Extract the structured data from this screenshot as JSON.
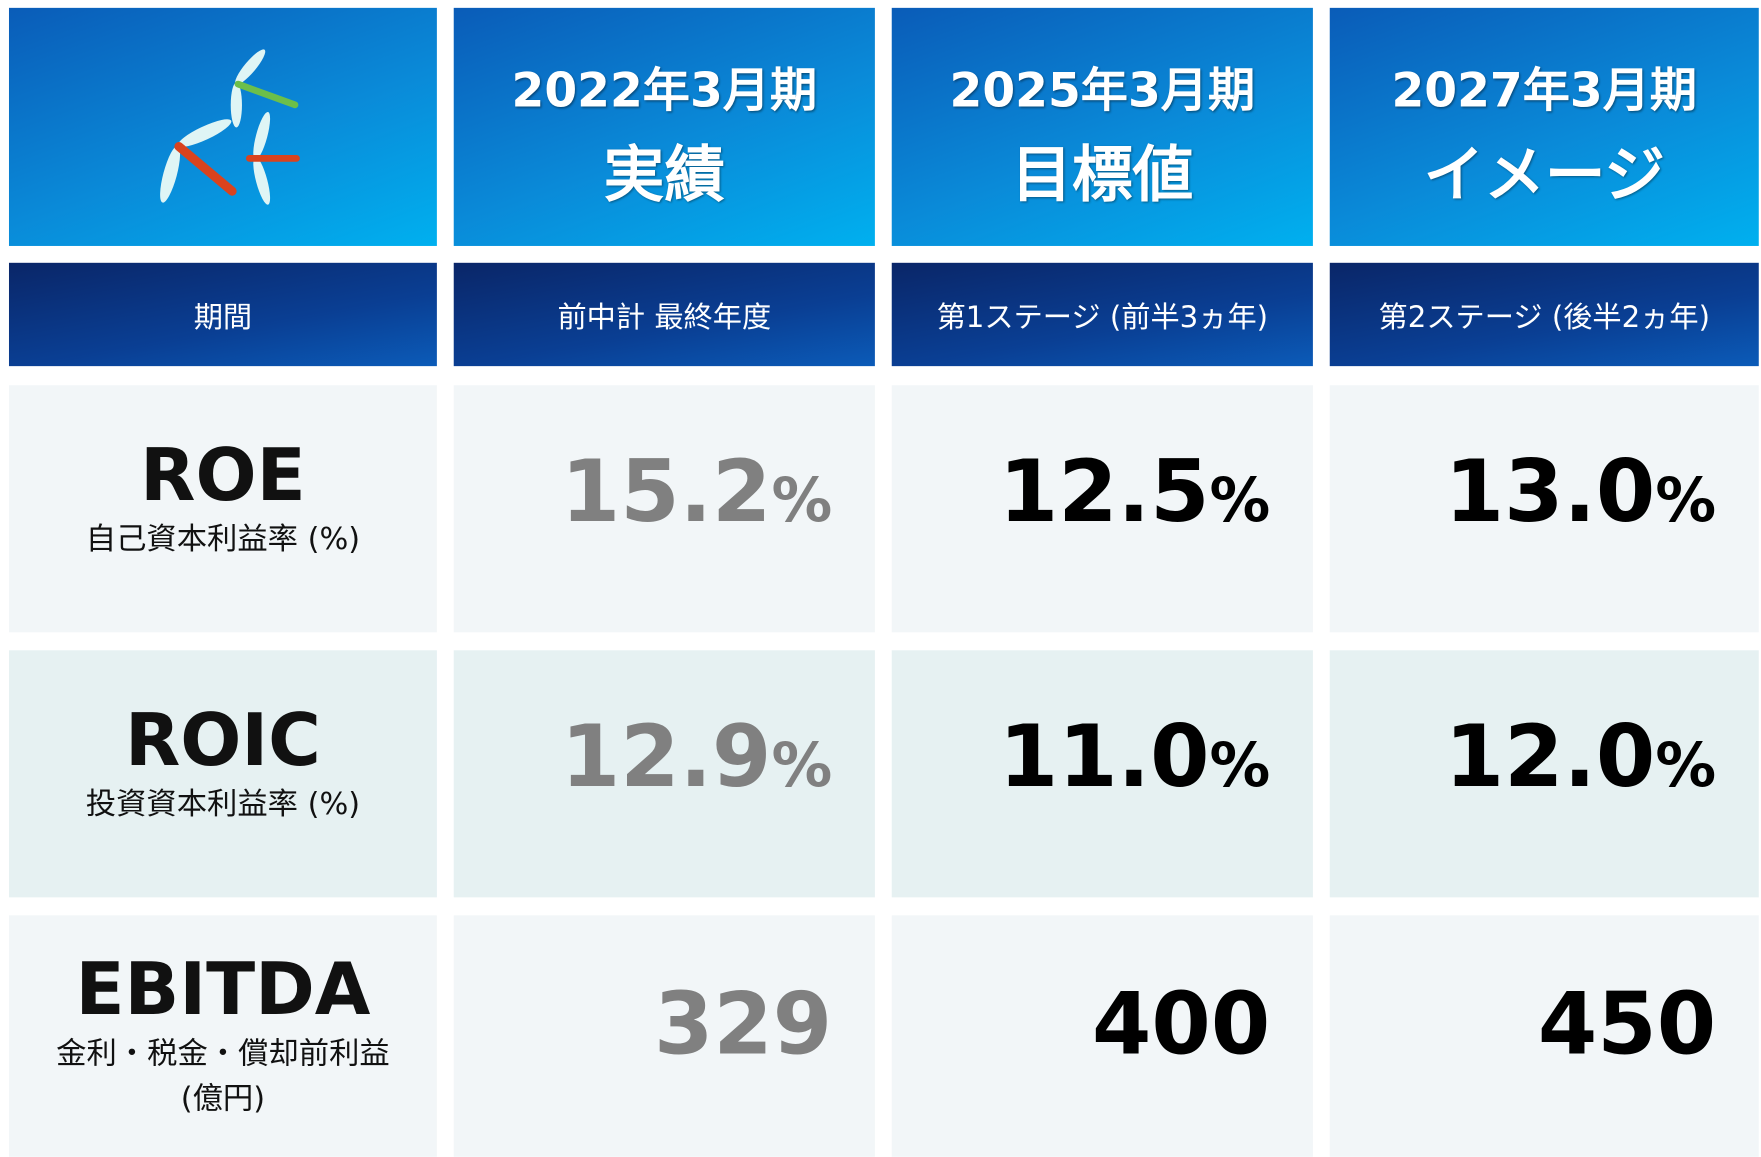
{
  "header": {
    "columns": [
      {
        "year": "2022年3月期",
        "title": "実績"
      },
      {
        "year": "2025年3月期",
        "title": "目標値"
      },
      {
        "year": "2027年3月期",
        "title": "イメージ"
      }
    ]
  },
  "period": {
    "label": "期間",
    "values": [
      "前中計 最終年度",
      "第1ステージ (前半3ヵ年)",
      "第2ステージ (後半2ヵ年)"
    ]
  },
  "rows": [
    {
      "label": "ROE",
      "sublabel": "自己資本利益率 (%)",
      "values": [
        {
          "value": "15.2",
          "unit": "%"
        },
        {
          "value": "12.5",
          "unit": "%"
        },
        {
          "value": "13.0",
          "unit": "%"
        }
      ]
    },
    {
      "label": "ROIC",
      "sublabel": "投資資本利益率 (%)",
      "values": [
        {
          "value": "12.9",
          "unit": "%"
        },
        {
          "value": "11.0",
          "unit": "%"
        },
        {
          "value": "12.0",
          "unit": "%"
        }
      ]
    },
    {
      "label": "EBITDA",
      "sublabel": "金利・税金・償却前利益\n(億円)",
      "values": [
        {
          "value": "329"
        },
        {
          "value": "400"
        },
        {
          "value": "450"
        }
      ]
    }
  ]
}
